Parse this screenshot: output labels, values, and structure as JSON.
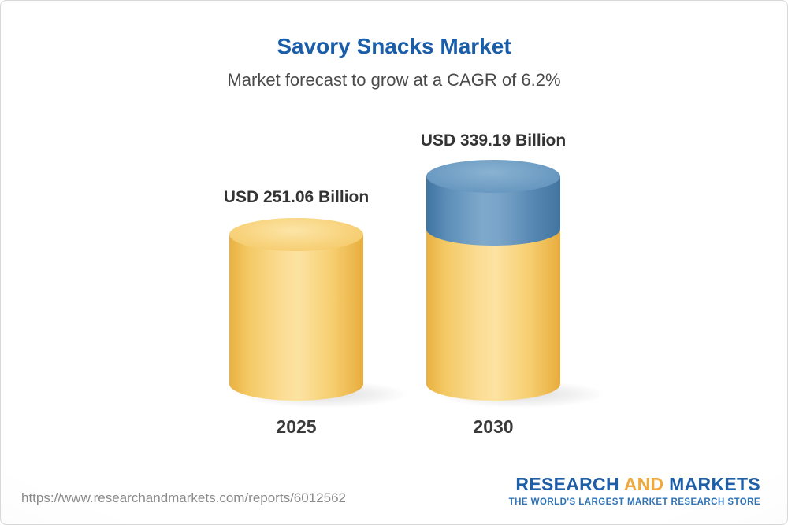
{
  "chart_data": {
    "type": "bar",
    "subtype": "3d-cylinder",
    "title": "Savory Snacks Market",
    "subtitle": "Market forecast to grow at a CAGR of 6.2%",
    "cagr": "6.2%",
    "unit": "USD Billion",
    "categories": [
      "2025",
      "2030"
    ],
    "values": [
      251.06,
      339.19
    ],
    "data_labels": [
      "USD 251.06 Billion",
      "USD 339.19 Billion"
    ],
    "ylim": [
      0,
      360
    ],
    "grid": false,
    "legend": "none",
    "colors": {
      "bar_base": "#F7CF72",
      "bar_growth_segment": "#5E90BA",
      "title": "#1A5EA9",
      "label_text": "#333333"
    }
  },
  "footer": {
    "url": "https://www.researchandmarkets.com/reports/6012562",
    "logo": {
      "word1": "RESEARCH",
      "word2": "AND",
      "word3": "MARKETS",
      "tagline": "THE WORLD'S LARGEST MARKET RESEARCH STORE"
    }
  }
}
